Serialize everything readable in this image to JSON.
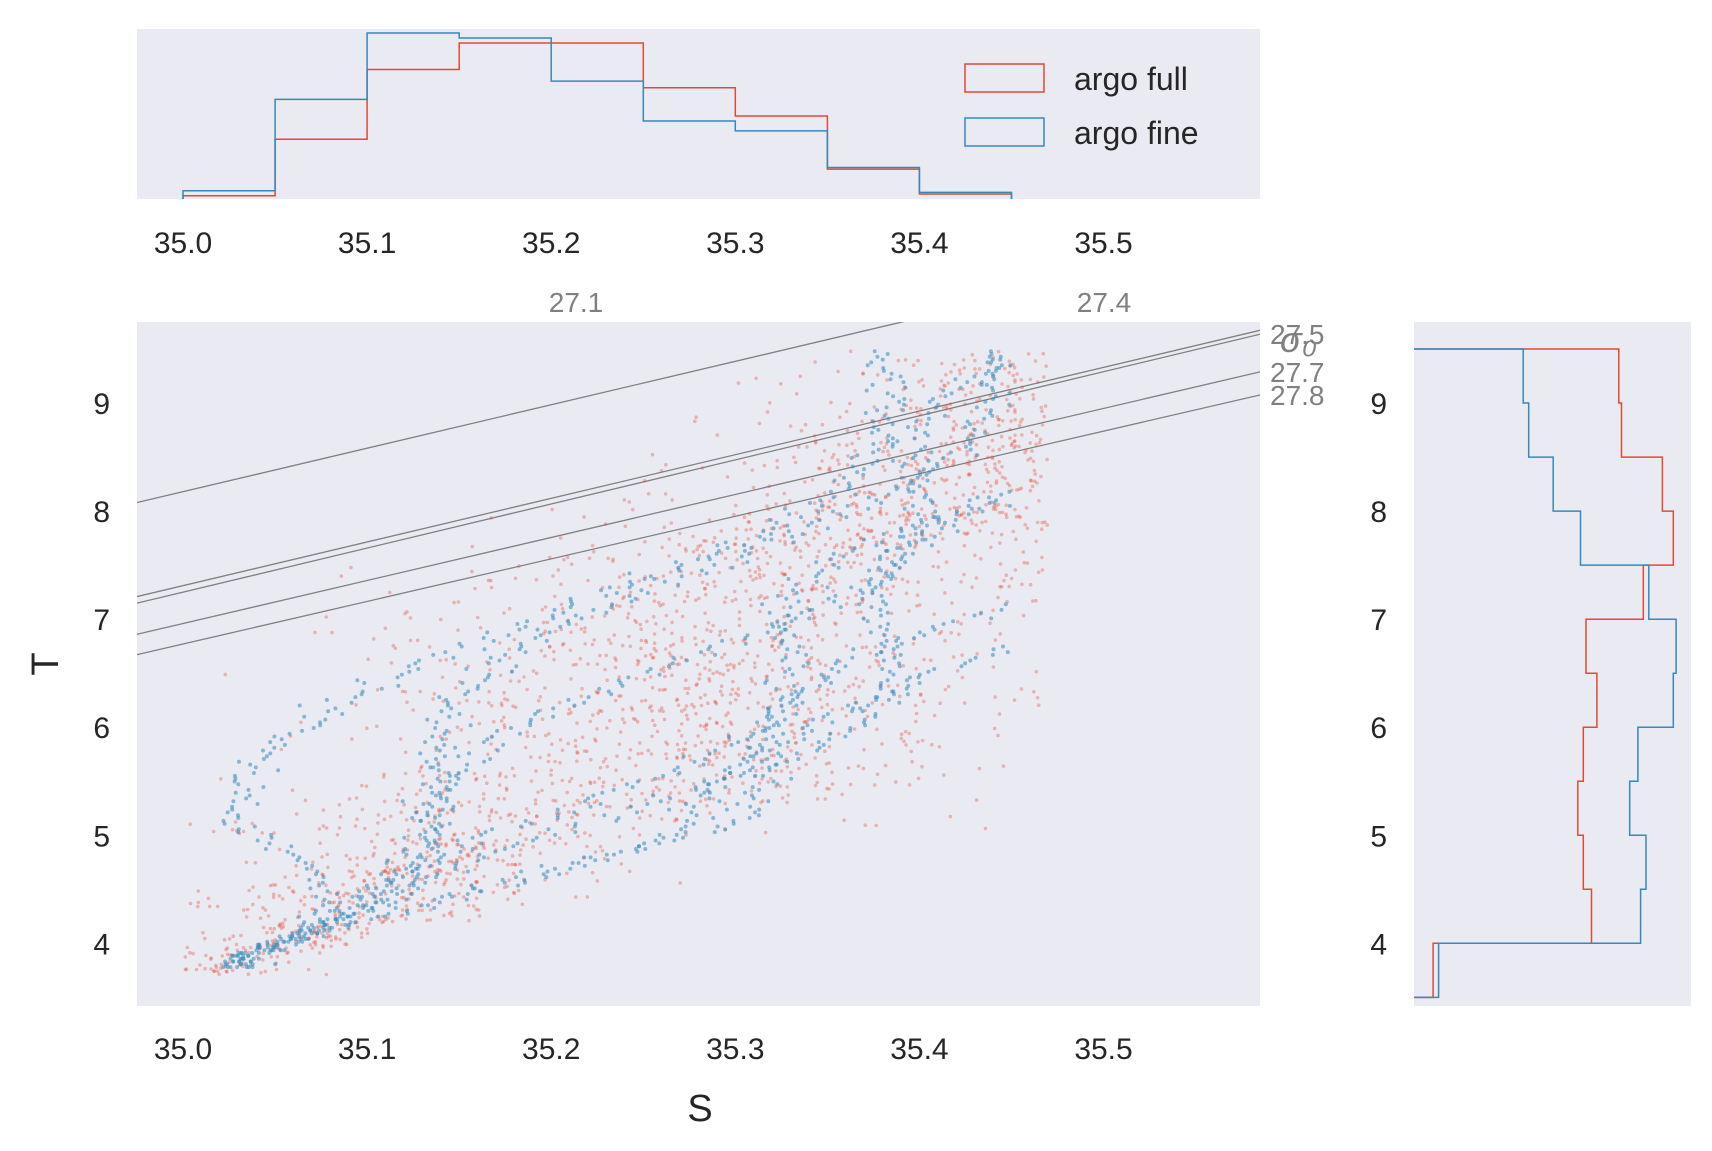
{
  "chart_data": {
    "type": "scatter",
    "xlabel": "S",
    "ylabel": "T",
    "xlim": [
      34.975,
      35.585
    ],
    "ylim": [
      3.42,
      9.75
    ],
    "x_ticks": [
      35.0,
      35.1,
      35.2,
      35.3,
      35.4,
      35.5
    ],
    "x_tick_labels": [
      "35.0",
      "35.1",
      "35.2",
      "35.3",
      "35.4",
      "35.5"
    ],
    "y_ticks": [
      4,
      5,
      6,
      7,
      8,
      9
    ],
    "y_tick_labels": [
      "4",
      "5",
      "6",
      "7",
      "8",
      "9"
    ],
    "grid": false,
    "colors": {
      "argo_full": "#e24a33",
      "argo_fine": "#348abd",
      "contour": "#808080",
      "panel_bg": "#eaeaf2"
    },
    "sigma_label": "σ₀",
    "density_contours": [
      {
        "label": "27.1",
        "slope": 4.02,
        "intercept": -132.52
      },
      {
        "label": "27.4",
        "slope": 4.04,
        "intercept": -134.09
      },
      {
        "label": "27.5",
        "slope": 4.08,
        "intercept": -135.55
      },
      {
        "label": "27.7",
        "slope": 3.98,
        "intercept": -132.34
      },
      {
        "label": "27.8",
        "slope": 3.94,
        "intercept": -131.13
      }
    ],
    "scatter_series": [
      {
        "name": "argo full",
        "color": "#e24a33",
        "description": "dense cloud of T-S points",
        "t_range": [
          3.65,
          9.5
        ],
        "s_range": [
          35.0,
          35.46
        ]
      },
      {
        "name": "argo fine",
        "color": "#348abd",
        "description": "T-S profile traces",
        "t_range": [
          3.75,
          9.5
        ],
        "s_range": [
          35.01,
          35.44
        ]
      }
    ],
    "top_histogram": {
      "bin_edges": [
        35.0,
        35.05,
        35.1,
        35.15,
        35.2,
        35.25,
        35.3,
        35.35,
        35.4,
        35.45
      ],
      "series": [
        {
          "name": "argo full",
          "values": [
            0.02,
            0.36,
            0.78,
            0.94,
            0.94,
            0.67,
            0.5,
            0.18,
            0.03
          ]
        },
        {
          "name": "argo fine",
          "values": [
            0.05,
            0.6,
            1.0,
            0.97,
            0.71,
            0.47,
            0.41,
            0.19,
            0.04
          ]
        }
      ]
    },
    "right_histogram": {
      "bin_edges": [
        3.5,
        4.0,
        4.5,
        5.0,
        5.5,
        6.0,
        6.5,
        7.0,
        7.5,
        8.0,
        8.5,
        9.0,
        9.5
      ],
      "series": [
        {
          "name": "argo full",
          "values": [
            0.07,
            0.65,
            0.62,
            0.6,
            0.62,
            0.67,
            0.63,
            0.84,
            0.95,
            0.91,
            0.76,
            0.75
          ]
        },
        {
          "name": "argo fine",
          "values": [
            0.09,
            0.83,
            0.85,
            0.79,
            0.82,
            0.95,
            0.96,
            0.86,
            0.61,
            0.51,
            0.42,
            0.4
          ]
        }
      ]
    },
    "legend": {
      "position": "top-right of top histogram",
      "entries": [
        "argo full",
        "argo fine"
      ]
    }
  }
}
